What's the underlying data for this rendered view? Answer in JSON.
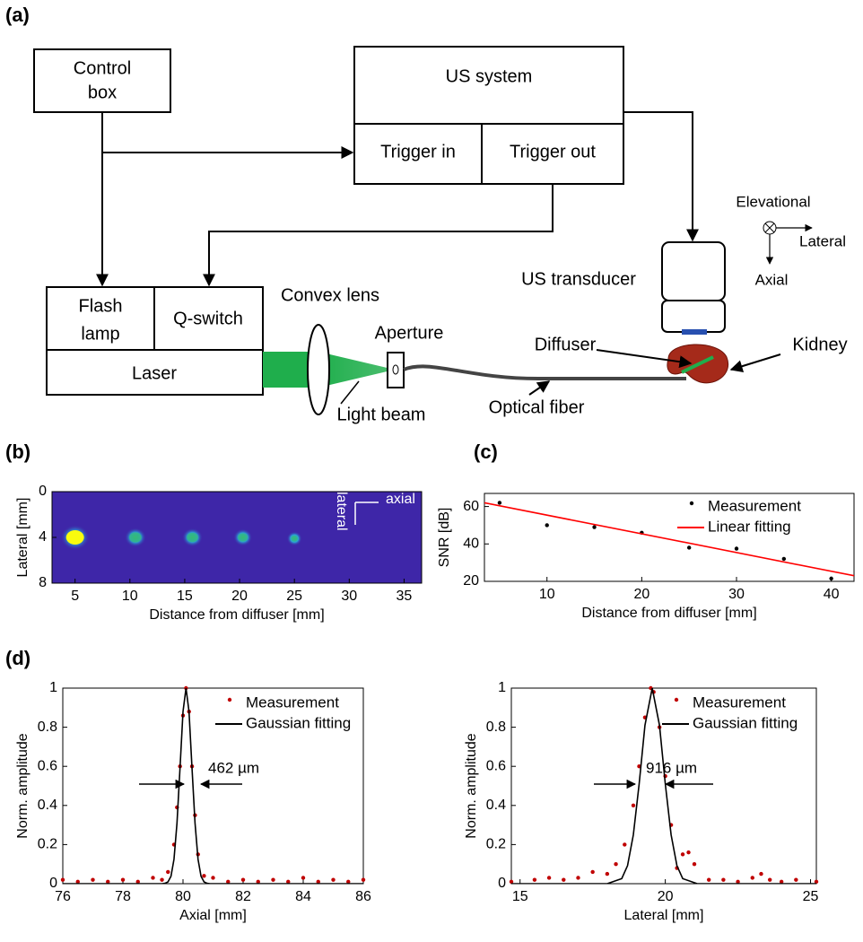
{
  "panel_labels": [
    "(a)",
    "(b)",
    "(c)",
    "(d)"
  ],
  "diagram": {
    "control_box": [
      "Control",
      "box"
    ],
    "us_system": "US system",
    "trigger_in": "Trigger in",
    "trigger_out": "Trigger out",
    "flash_lamp": [
      "Flash",
      "lamp"
    ],
    "q_switch": "Q-switch",
    "laser": "Laser",
    "convex_lens": "Convex lens",
    "aperture": "Aperture",
    "light_beam": "Light beam",
    "optical_fiber": "Optical fiber",
    "us_transducer": "US transducer",
    "diffuser": "Diffuser",
    "kidney": "Kidney",
    "elevational": "Elevational",
    "lateral": "Lateral",
    "axial": "Axial"
  },
  "chart_data": [
    {
      "type": "heatmap",
      "xlabel": "Distance from diffuser [mm]",
      "ylabel": "Lateral [mm]",
      "xlim": [
        2.9,
        36.6
      ],
      "xticks": [
        5,
        10,
        15,
        20,
        25,
        30,
        35
      ],
      "ylim": [
        0,
        8
      ],
      "yticks": [
        0,
        4,
        8
      ],
      "y_reversed": true,
      "annotations": [
        "axial",
        "lateral"
      ],
      "x": [
        5,
        10.5,
        15.7,
        20.3,
        25
      ],
      "y": [
        4,
        4,
        4,
        4,
        4.1
      ],
      "values": [
        1,
        0.6,
        0.55,
        0.45,
        0.25
      ]
    },
    {
      "type": "scatter",
      "xlabel": "Distance from diffuser [mm]",
      "ylabel": "SNR [dB]",
      "xlim": [
        3.4,
        42.4
      ],
      "xticks": [
        10,
        20,
        30,
        40
      ],
      "ylim": [
        20,
        67
      ],
      "yticks": [
        20,
        40,
        60
      ],
      "series": [
        {
          "name": "Measurement",
          "color": "#000000",
          "mode": "markers",
          "x": [
            5,
            10,
            15,
            20,
            25,
            30,
            35,
            40
          ],
          "values": [
            62,
            50,
            49,
            46,
            38,
            37.5,
            32,
            21.5
          ]
        },
        {
          "name": "Linear fitting",
          "color": "#ff0000",
          "mode": "line",
          "x": [
            3.4,
            42.4
          ],
          "values": [
            62,
            23
          ]
        }
      ]
    },
    {
      "type": "line",
      "xlabel": "Axial [mm]",
      "ylabel": "Norm. amplitude",
      "annotation": "462 µm",
      "xlim": [
        76,
        86
      ],
      "xticks": [
        76,
        78,
        80,
        82,
        84,
        86
      ],
      "ylim": [
        0,
        1
      ],
      "yticks": [
        0,
        0.2,
        0.4,
        0.6,
        0.8,
        1
      ],
      "series": [
        {
          "name": "Measurement",
          "color": "#c00000",
          "mode": "markers",
          "x": [
            76,
            76.5,
            77,
            77.5,
            78,
            78.5,
            79,
            79.3,
            79.5,
            79.7,
            79.8,
            79.9,
            80.0,
            80.1,
            80.2,
            80.3,
            80.4,
            80.5,
            80.7,
            81,
            81.5,
            82,
            82.5,
            83,
            83.5,
            84,
            84.5,
            85,
            85.5,
            86
          ],
          "values": [
            0.02,
            0.01,
            0.02,
            0.01,
            0.02,
            0.01,
            0.03,
            0.02,
            0.06,
            0.2,
            0.39,
            0.6,
            0.86,
            1.0,
            0.88,
            0.6,
            0.35,
            0.15,
            0.04,
            0.03,
            0.01,
            0.02,
            0.01,
            0.02,
            0.01,
            0.03,
            0.01,
            0.02,
            0.01,
            0.02
          ]
        },
        {
          "name": "Gaussian fitting",
          "color": "#000000",
          "mode": "line",
          "x": [
            76,
            79.3,
            79.4,
            79.5,
            79.6,
            79.7,
            79.8,
            79.9,
            80.0,
            80.1,
            80.2,
            80.3,
            80.4,
            80.5,
            80.6,
            80.7,
            80.8,
            80.9,
            86
          ],
          "values": [
            0,
            0,
            0.002,
            0.009,
            0.038,
            0.125,
            0.31,
            0.59,
            0.88,
            1,
            0.88,
            0.59,
            0.31,
            0.125,
            0.038,
            0.009,
            0.002,
            0,
            0
          ]
        }
      ]
    },
    {
      "type": "line",
      "xlabel": "Lateral [mm]",
      "ylabel": "Norm. amplitude",
      "annotation": "916 µm",
      "xlim": [
        14.7,
        25.2
      ],
      "xticks": [
        15,
        20,
        25
      ],
      "ylim": [
        0,
        1
      ],
      "yticks": [
        0,
        0.2,
        0.4,
        0.6,
        0.8,
        1
      ],
      "series": [
        {
          "name": "Measurement",
          "color": "#c00000",
          "mode": "markers",
          "x": [
            14.7,
            15.5,
            16,
            16.5,
            17,
            17.5,
            18,
            18.3,
            18.6,
            18.9,
            19.1,
            19.3,
            19.5,
            19.6,
            19.8,
            20.0,
            20.2,
            20.4,
            20.6,
            20.8,
            21,
            21.5,
            22,
            22.5,
            23,
            23.3,
            23.6,
            24,
            24.5,
            25.2
          ],
          "values": [
            0.01,
            0.02,
            0.03,
            0.02,
            0.03,
            0.06,
            0.05,
            0.1,
            0.2,
            0.4,
            0.6,
            0.85,
            1.0,
            0.98,
            0.8,
            0.55,
            0.3,
            0.08,
            0.15,
            0.16,
            0.1,
            0.02,
            0.02,
            0.01,
            0.03,
            0.05,
            0.02,
            0.01,
            0.02,
            0.01
          ]
        },
        {
          "name": "Gaussian fitting",
          "color": "#000000",
          "mode": "line",
          "x": [
            14.7,
            18.0,
            18.5,
            18.7,
            18.9,
            19.1,
            19.3,
            19.55,
            19.8,
            20.0,
            20.2,
            20.4,
            20.6,
            21.1,
            25.2
          ],
          "values": [
            0,
            0,
            0.026,
            0.092,
            0.25,
            0.51,
            0.81,
            1,
            0.81,
            0.51,
            0.25,
            0.092,
            0.026,
            0,
            0
          ]
        }
      ]
    }
  ]
}
